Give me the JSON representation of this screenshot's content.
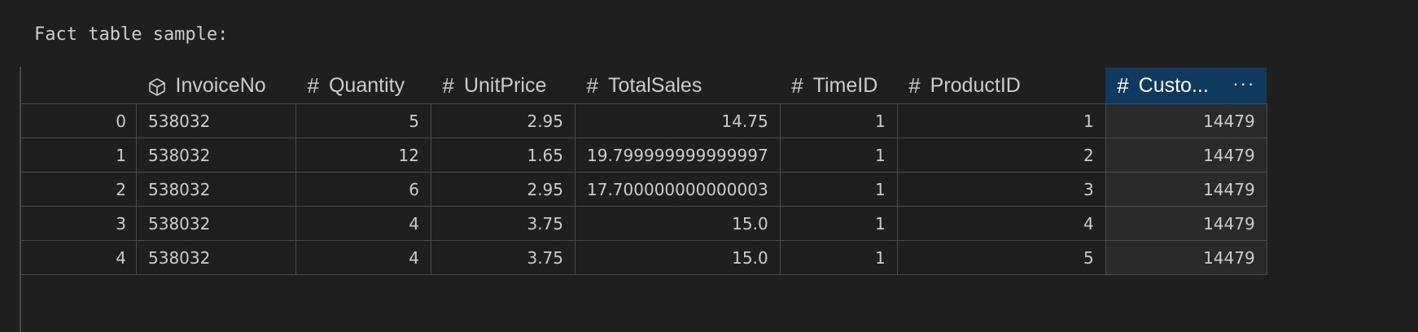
{
  "output": {
    "label": "Fact table sample:"
  },
  "table": {
    "columns": [
      {
        "label": "",
        "icon": ""
      },
      {
        "label": "InvoiceNo",
        "icon": "cube-icon"
      },
      {
        "label": "Quantity",
        "icon": "#"
      },
      {
        "label": "UnitPrice",
        "icon": "#"
      },
      {
        "label": "TotalSales",
        "icon": "#"
      },
      {
        "label": "TimeID",
        "icon": "#"
      },
      {
        "label": "ProductID",
        "icon": "#"
      },
      {
        "label": "Custo...",
        "icon": "#",
        "selected": true,
        "more_icon": "ellipsis-icon"
      }
    ],
    "rows": [
      [
        "0",
        "538032",
        "5",
        "2.95",
        "14.75",
        "1",
        "1",
        "14479"
      ],
      [
        "1",
        "538032",
        "12",
        "1.65",
        "19.799999999999997",
        "1",
        "2",
        "14479"
      ],
      [
        "2",
        "538032",
        "6",
        "2.95",
        "17.700000000000003",
        "1",
        "3",
        "14479"
      ],
      [
        "3",
        "538032",
        "4",
        "3.75",
        "15.0",
        "1",
        "4",
        "14479"
      ],
      [
        "4",
        "538032",
        "4",
        "3.75",
        "15.0",
        "1",
        "5",
        "14479"
      ]
    ]
  },
  "colors": {
    "background": "#1f1f1f",
    "selected_header": "#0f3a5f",
    "grid_line": "#4a4a4a",
    "text": "#cccccc"
  }
}
